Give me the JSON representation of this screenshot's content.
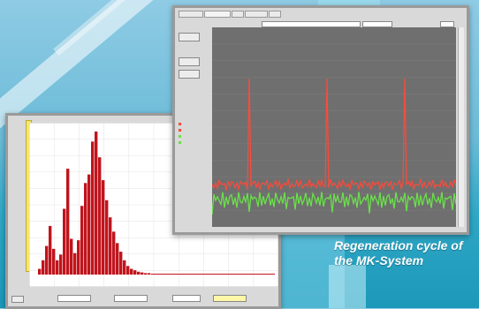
{
  "caption": {
    "line1": "Regeneration cycle of",
    "line2": "the MK-System"
  },
  "colors": {
    "plot_bg": "#6f6f6f",
    "red_trace": "#ff4a3a",
    "green_trace": "#6ae04a",
    "histogram_bar": "#c0141c",
    "histogram_bg": "#ffffff"
  },
  "monitor_window": {
    "tabs": [
      "",
      "",
      "",
      "",
      ""
    ],
    "left_buttons": [
      "",
      "",
      ""
    ],
    "legend_items": [
      {
        "label": "",
        "color": "#ff4a3a"
      },
      {
        "label": "",
        "color": "#ff4a3a"
      },
      {
        "label": "",
        "color": "#6ae04a"
      },
      {
        "label": "",
        "color": "#6ae04a"
      }
    ]
  },
  "histogram_window": {
    "title": "",
    "bottom_fields": [
      "",
      "",
      "",
      ""
    ]
  }
}
